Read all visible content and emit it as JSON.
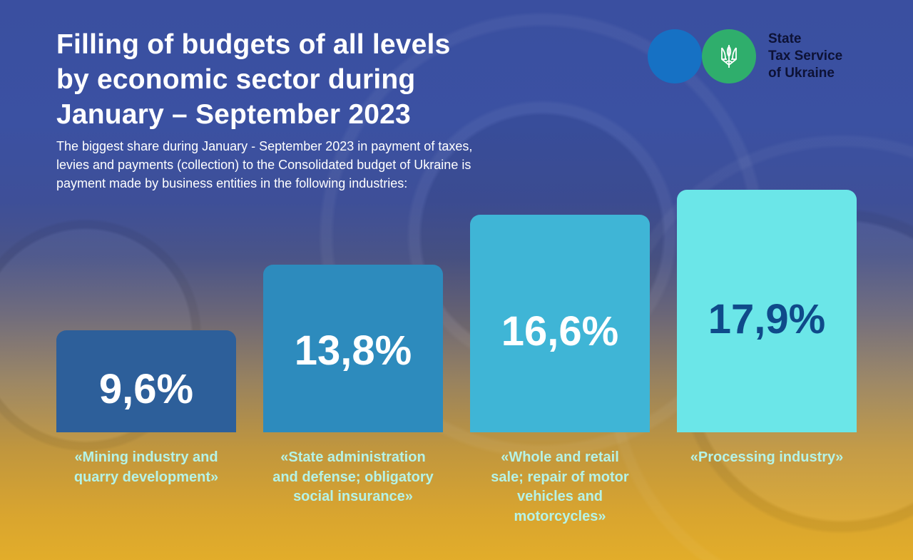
{
  "header": {
    "title_lines": [
      "Filling of budgets of all levels",
      "by economic sector during",
      "January – September 2023"
    ],
    "subtitle_lines": [
      "The biggest share during January - September 2023 in payment of taxes,",
      "levies and payments (collection) to the Consolidated budget of Ukraine is",
      "payment made by business entities in the following industries:"
    ]
  },
  "logo": {
    "icon": "trident-icon",
    "text_lines": [
      "State",
      "Tax Service",
      "of Ukraine"
    ],
    "colors": {
      "circle_left": "#1671c4",
      "circle_right": "#2fae6c",
      "text": "#0d1236"
    }
  },
  "chart_data": {
    "type": "bar",
    "title": "Filling of budgets of all levels by economic sector during January – September 2023",
    "xlabel": "",
    "ylabel": "",
    "ylim": [
      0,
      17.9
    ],
    "grid": false,
    "legend": "none",
    "unit": "%",
    "categories": [
      "«Mining industry and quarry development»",
      "«State administration and defense; obligatory social insurance»",
      "«Whole and retail sale; repair of motor vehicles and motorcycles»",
      "«Processing industry»"
    ],
    "category_lines": [
      [
        "«Mining industry and",
        "quarry development»"
      ],
      [
        "«State administration",
        "and defense; obligatory",
        "social insurance»"
      ],
      [
        "«Whole and retail",
        "sale; repair of motor",
        "vehicles and",
        "motorcycles»"
      ],
      [
        "«Processing industry»"
      ]
    ],
    "values": [
      9.6,
      13.8,
      16.6,
      17.9
    ],
    "data_labels": [
      "9,6%",
      "13,8%",
      "16,6%",
      "17,9%"
    ],
    "bar_colors": [
      "#2d5f9a",
      "#2d8bbd",
      "#3fb5d6",
      "#6be6e8"
    ],
    "label_colors": [
      "#ffffff",
      "#ffffff",
      "#ffffff",
      "#0f4a8a"
    ],
    "category_label_color": "#b5f3e6"
  }
}
